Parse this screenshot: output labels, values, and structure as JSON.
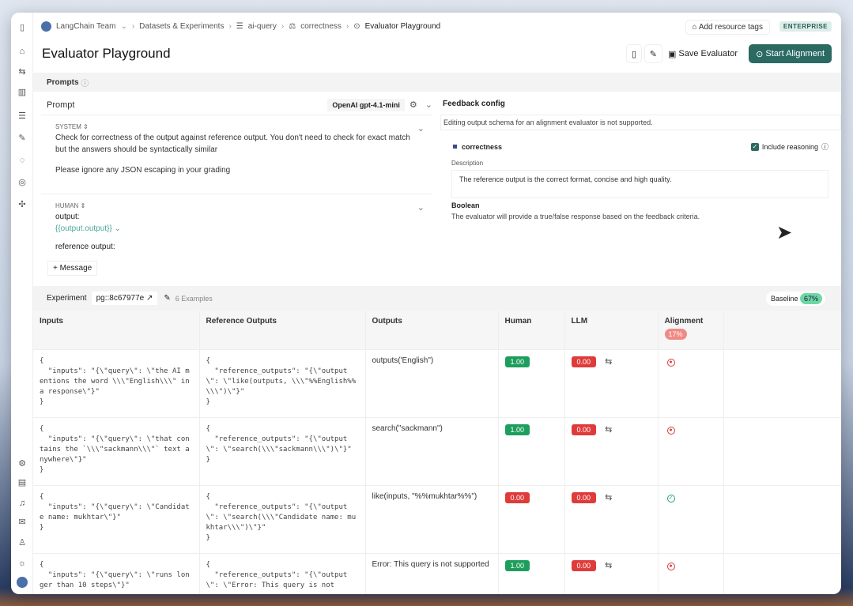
{
  "breadcrumb": {
    "team": "LangChain Team",
    "datasets": "Datasets & Experiments",
    "dataset": "ai-query",
    "evaluator": "correctness",
    "current": "Evaluator Playground"
  },
  "header": {
    "title": "Evaluator Playground",
    "add_tags": "Add resource tags",
    "plan_badge": "ENTERPRISE",
    "save": "Save Evaluator",
    "start": "Start Alignment"
  },
  "prompts": {
    "section": "Prompts",
    "prompt_label": "Prompt",
    "model": "OpenAI gpt-4.1-mini",
    "system": {
      "role": "SYSTEM",
      "text1": "Check for correctness of the output against reference output. You don't need to check for exact match but the answers should be syntactically similar",
      "text2": "Please ignore any JSON escaping in your grading"
    },
    "human": {
      "role": "HUMAN",
      "line1": "output:",
      "var": "{{output.output}}",
      "line3": "reference output:"
    },
    "add_message": "+ Message"
  },
  "feedback": {
    "title": "Feedback config",
    "notice": "Editing output schema for an alignment evaluator is not supported.",
    "key": "correctness",
    "include_reasoning": "Include reasoning",
    "include_reasoning_checked": true,
    "description_label": "Description",
    "description": "The reference output is the correct format, concise and high quality.",
    "type": "Boolean",
    "type_desc": "The evaluator will provide a true/false response based on the feedback criteria."
  },
  "experiment": {
    "label": "Experiment",
    "id": "pg::8c67977e",
    "examples": "6 Examples",
    "baseline_label": "Baseline",
    "baseline": "67%"
  },
  "table": {
    "columns": [
      "Inputs",
      "Reference Outputs",
      "Outputs",
      "Human",
      "LLM",
      "Alignment"
    ],
    "alignment_summary": "17%",
    "rows": [
      {
        "input": "{\n  \"inputs\": \"{\\\"query\\\": \\\"the AI mentions the word \\\\\\\"English\\\\\\\" in a response\\\"}\"\n}",
        "reference": "{\n  \"reference_outputs\": \"{\\\"output\\\": \\\"like(outputs, \\\\\\\"%%English%%\\\\\\\")\\\"}\"\n}",
        "output": "outputs('English\")",
        "human": "1.00",
        "llm": "0.00",
        "aligned": false
      },
      {
        "input": "{\n  \"inputs\": \"{\\\"query\\\": \\\"that contains the `\\\\\\\"sackmann\\\\\\\"` text anywhere\\\"}\"\n}",
        "reference": "{\n  \"reference_outputs\": \"{\\\"output\\\": \\\"search(\\\\\\\"sackmann\\\\\\\")\\\"}\"\n}",
        "output": "search(\"sackmann\")",
        "human": "1.00",
        "llm": "0.00",
        "aligned": false
      },
      {
        "input": "{\n  \"inputs\": \"{\\\"query\\\": \\\"Candidate name: mukhtar\\\"}\"\n}",
        "reference": "{\n  \"reference_outputs\": \"{\\\"output\\\": \\\"search(\\\\\\\"Candidate name: mukhtar\\\\\\\")\\\"}\"\n}",
        "output": "like(inputs, \"%%mukhtar%%\")",
        "human": "0.00",
        "llm": "0.00",
        "aligned": true
      },
      {
        "input": "{\n  \"inputs\": \"{\\\"query\\\": \\\"runs longer than 10 steps\\\"}\"",
        "reference": "{\n  \"reference_outputs\": \"{\\\"output\\\": \\\"Error: This query is not",
        "output": "Error: This query is not supported",
        "human": "1.00",
        "llm": "0.00",
        "aligned": false
      }
    ]
  },
  "colors": {
    "accent": "#2b6a63",
    "pass": "#1e9e5c",
    "fail": "#e03b3b",
    "baseline": "#6fd7a3",
    "alignment": "#f08a84"
  }
}
